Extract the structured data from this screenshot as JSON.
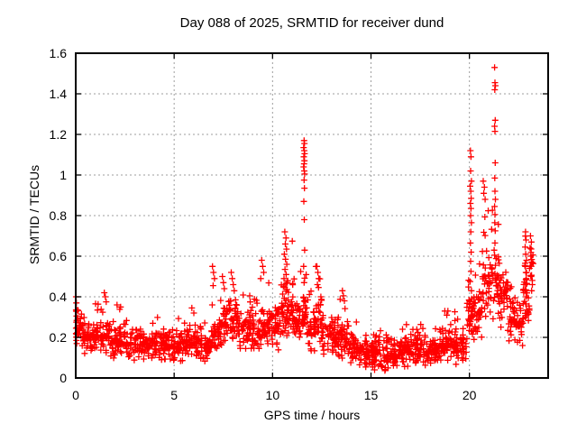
{
  "page": {
    "background": "#ffffff",
    "text_color": "#000000"
  },
  "chart_data": {
    "type": "scatter",
    "title": "Day 088 of 2025, SRMTID for receiver dund",
    "xlabel": "GPS time / hours",
    "ylabel": "SRMTID / TECUs",
    "xlim": [
      0,
      24
    ],
    "ylim": [
      0,
      1.6
    ],
    "xticks": [
      0,
      5,
      10,
      15,
      20
    ],
    "xtick_labels": [
      "0",
      "5",
      "10",
      "15",
      "20"
    ],
    "yticks": [
      0,
      0.2,
      0.4,
      0.6,
      0.8,
      1,
      1.2,
      1.4,
      1.6
    ],
    "ytick_labels": [
      "0",
      "0.2",
      "0.4",
      "0.6",
      "0.8",
      "1",
      "1.2",
      "1.4",
      "1.6"
    ],
    "grid": true,
    "grid_style": "dotted",
    "grid_color": "#9e9e9e",
    "axis_color": "#000000",
    "legend": "none",
    "marker": {
      "shape": "plus",
      "color": "#ff0000",
      "size": 7,
      "stroke_width": 1.3
    },
    "description": "Dense band of SRMTID values around 0.1-0.3 TECUs all day; elevated activity 7-13 h; quiet minimum 14-19 h; strong spike columns near 11.6 h (peak 1.17), 20.1 h (peak 1.12), 21.3 h (peak 1.53), 10.7 h (0.72) and 22.9 h (0.72); data ends near 23.2 h.",
    "notable_peaks": [
      {
        "x": 11.6,
        "y": 1.17
      },
      {
        "x": 20.1,
        "y": 1.12
      },
      {
        "x": 21.3,
        "y": 1.53
      },
      {
        "x": 10.65,
        "y": 0.72
      },
      {
        "x": 22.9,
        "y": 0.72
      }
    ],
    "seed": 20250088,
    "band_segments": [
      [
        0.0,
        0.3,
        25,
        0.15,
        0.24,
        0.4
      ],
      [
        0.3,
        1.0,
        55,
        0.12,
        0.19,
        0.32
      ],
      [
        1.0,
        1.7,
        55,
        0.12,
        0.2,
        0.42
      ],
      [
        1.7,
        2.5,
        60,
        0.1,
        0.18,
        0.36
      ],
      [
        2.5,
        3.5,
        75,
        0.08,
        0.16,
        0.32
      ],
      [
        3.5,
        4.5,
        75,
        0.09,
        0.17,
        0.3
      ],
      [
        4.5,
        5.5,
        75,
        0.08,
        0.16,
        0.3
      ],
      [
        5.5,
        6.3,
        60,
        0.09,
        0.17,
        0.33
      ],
      [
        6.3,
        6.9,
        45,
        0.08,
        0.15,
        0.28
      ],
      [
        6.9,
        7.3,
        35,
        0.12,
        0.2,
        0.55
      ],
      [
        7.3,
        7.8,
        40,
        0.15,
        0.26,
        0.5
      ],
      [
        7.8,
        8.3,
        40,
        0.16,
        0.28,
        0.52
      ],
      [
        8.3,
        8.9,
        45,
        0.14,
        0.24,
        0.46
      ],
      [
        8.9,
        9.4,
        40,
        0.13,
        0.22,
        0.42
      ],
      [
        9.4,
        10.0,
        45,
        0.14,
        0.24,
        0.58
      ],
      [
        10.0,
        10.45,
        35,
        0.15,
        0.25,
        0.48
      ],
      [
        10.45,
        11.05,
        55,
        0.18,
        0.33,
        0.7
      ],
      [
        11.05,
        11.5,
        40,
        0.17,
        0.28,
        0.55
      ],
      [
        11.5,
        11.8,
        30,
        0.2,
        0.33,
        0.6
      ],
      [
        11.8,
        12.15,
        30,
        0.14,
        0.24,
        0.45
      ],
      [
        12.15,
        12.5,
        30,
        0.17,
        0.28,
        0.55
      ],
      [
        12.5,
        13.2,
        55,
        0.12,
        0.21,
        0.38
      ],
      [
        13.2,
        13.9,
        55,
        0.1,
        0.19,
        0.43
      ],
      [
        13.9,
        14.6,
        55,
        0.07,
        0.14,
        0.3
      ],
      [
        14.6,
        15.6,
        80,
        0.04,
        0.12,
        0.24
      ],
      [
        15.6,
        16.6,
        80,
        0.04,
        0.11,
        0.24
      ],
      [
        16.6,
        17.2,
        50,
        0.05,
        0.13,
        0.28
      ],
      [
        17.2,
        17.9,
        55,
        0.06,
        0.14,
        0.3
      ],
      [
        17.9,
        18.5,
        50,
        0.06,
        0.13,
        0.28
      ],
      [
        18.5,
        19.3,
        60,
        0.08,
        0.16,
        0.33
      ],
      [
        19.3,
        19.85,
        45,
        0.07,
        0.14,
        0.3
      ],
      [
        19.85,
        20.35,
        45,
        0.15,
        0.3,
        0.65
      ],
      [
        20.35,
        20.65,
        25,
        0.2,
        0.32,
        0.6
      ],
      [
        20.65,
        21.05,
        35,
        0.3,
        0.5,
        0.9
      ],
      [
        21.05,
        21.55,
        40,
        0.28,
        0.45,
        0.85
      ],
      [
        21.55,
        21.95,
        35,
        0.25,
        0.4,
        0.62
      ],
      [
        21.95,
        22.45,
        40,
        0.17,
        0.28,
        0.5
      ],
      [
        22.45,
        22.75,
        25,
        0.16,
        0.26,
        0.45
      ],
      [
        22.75,
        23.05,
        25,
        0.25,
        0.42,
        0.7
      ],
      [
        23.05,
        23.25,
        12,
        0.4,
        0.55,
        0.72
      ]
    ],
    "spike_points": [
      [
        0.02,
        0.4
      ],
      [
        0.03,
        0.37
      ],
      [
        0.02,
        0.335
      ],
      [
        0.04,
        0.305
      ],
      [
        0.03,
        0.275
      ],
      [
        0.02,
        0.245
      ],
      [
        0.04,
        0.215
      ],
      [
        0.03,
        0.185
      ],
      [
        0.05,
        0.17
      ],
      [
        1.45,
        0.42
      ],
      [
        1.5,
        0.4
      ],
      [
        1.55,
        0.375
      ],
      [
        2.1,
        0.36
      ],
      [
        5.9,
        0.345
      ],
      [
        6.0,
        0.32
      ],
      [
        6.95,
        0.55
      ],
      [
        7.0,
        0.52
      ],
      [
        7.05,
        0.49
      ],
      [
        6.98,
        0.455
      ],
      [
        7.45,
        0.5
      ],
      [
        7.5,
        0.47
      ],
      [
        7.55,
        0.44
      ],
      [
        7.9,
        0.52
      ],
      [
        7.95,
        0.49
      ],
      [
        8.0,
        0.46
      ],
      [
        8.05,
        0.43
      ],
      [
        9.45,
        0.58
      ],
      [
        9.5,
        0.55
      ],
      [
        9.55,
        0.52
      ],
      [
        9.4,
        0.49
      ],
      [
        10.62,
        0.72
      ],
      [
        10.68,
        0.69
      ],
      [
        10.65,
        0.66
      ],
      [
        10.71,
        0.635
      ],
      [
        10.6,
        0.61
      ],
      [
        10.66,
        0.585
      ],
      [
        10.72,
        0.56
      ],
      [
        10.63,
        0.535
      ],
      [
        10.69,
        0.51
      ],
      [
        10.58,
        0.49
      ],
      [
        10.75,
        0.47
      ],
      [
        10.55,
        0.45
      ],
      [
        11.6,
        1.17
      ],
      [
        11.62,
        1.155
      ],
      [
        11.58,
        1.135
      ],
      [
        11.61,
        1.12
      ],
      [
        11.63,
        1.105
      ],
      [
        11.59,
        1.09
      ],
      [
        11.62,
        1.07
      ],
      [
        11.6,
        1.055
      ],
      [
        11.58,
        1.04
      ],
      [
        11.61,
        1.02
      ],
      [
        11.63,
        1.005
      ],
      [
        11.6,
        0.975
      ],
      [
        11.62,
        0.935
      ],
      [
        11.59,
        0.87
      ],
      [
        11.61,
        0.78
      ],
      [
        11.63,
        0.63
      ],
      [
        11.58,
        0.55
      ],
      [
        11.6,
        0.47
      ],
      [
        12.25,
        0.55
      ],
      [
        12.3,
        0.52
      ],
      [
        12.35,
        0.49
      ],
      [
        12.28,
        0.46
      ],
      [
        13.55,
        0.43
      ],
      [
        13.6,
        0.405
      ],
      [
        13.65,
        0.38
      ],
      [
        18.75,
        0.33
      ],
      [
        18.85,
        0.31
      ],
      [
        20.05,
        1.12
      ],
      [
        20.08,
        1.09
      ],
      [
        20.06,
        1.02
      ],
      [
        20.1,
        0.97
      ],
      [
        20.04,
        0.945
      ],
      [
        20.07,
        0.92
      ],
      [
        20.09,
        0.885
      ],
      [
        20.05,
        0.86
      ],
      [
        20.08,
        0.835
      ],
      [
        20.06,
        0.8
      ],
      [
        20.1,
        0.765
      ],
      [
        20.07,
        0.72
      ],
      [
        20.05,
        0.665
      ],
      [
        20.09,
        0.62
      ],
      [
        20.06,
        0.575
      ],
      [
        20.08,
        0.525
      ],
      [
        20.04,
        0.475
      ],
      [
        20.1,
        0.43
      ],
      [
        20.12,
        0.39
      ],
      [
        20.02,
        0.35
      ],
      [
        20.7,
        0.97
      ],
      [
        20.76,
        0.94
      ],
      [
        20.73,
        0.91
      ],
      [
        20.8,
        0.88
      ],
      [
        21.28,
        1.53
      ],
      [
        21.3,
        1.455
      ],
      [
        21.32,
        1.44
      ],
      [
        21.29,
        1.42
      ],
      [
        21.31,
        1.27
      ],
      [
        21.28,
        1.24
      ],
      [
        21.3,
        1.215
      ],
      [
        21.31,
        1.06
      ],
      [
        21.29,
        0.985
      ],
      [
        21.3,
        0.92
      ],
      [
        21.32,
        0.88
      ],
      [
        21.28,
        0.845
      ],
      [
        21.3,
        0.805
      ],
      [
        21.29,
        0.765
      ],
      [
        21.31,
        0.725
      ],
      [
        21.3,
        0.665
      ],
      [
        21.28,
        0.605
      ],
      [
        21.32,
        0.555
      ],
      [
        22.85,
        0.72
      ],
      [
        22.88,
        0.68
      ],
      [
        22.83,
        0.645
      ],
      [
        22.86,
        0.61
      ],
      [
        22.9,
        0.58
      ],
      [
        22.84,
        0.55
      ],
      [
        22.87,
        0.52
      ],
      [
        22.89,
        0.49
      ],
      [
        22.85,
        0.46
      ],
      [
        22.83,
        0.43
      ],
      [
        22.88,
        0.4
      ],
      [
        22.86,
        0.365
      ],
      [
        22.9,
        0.335
      ],
      [
        22.84,
        0.3
      ],
      [
        23.1,
        0.7
      ],
      [
        23.15,
        0.67
      ],
      [
        23.08,
        0.64
      ],
      [
        23.12,
        0.6
      ],
      [
        23.18,
        0.57
      ],
      [
        23.05,
        0.54
      ],
      [
        23.14,
        0.5
      ],
      [
        23.2,
        0.46
      ],
      [
        23.16,
        0.43
      ]
    ]
  }
}
